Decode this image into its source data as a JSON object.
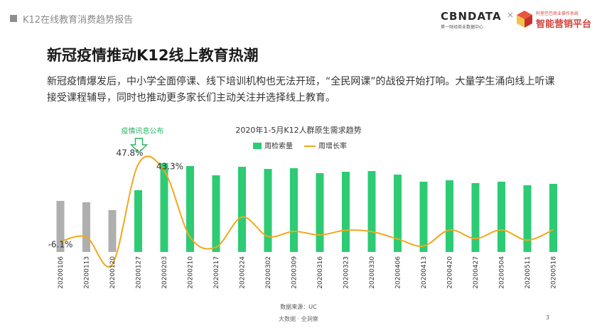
{
  "header": {
    "report_title": "K12在线教育消费趋势报告",
    "cbn_logo": "CBNDATA",
    "cbn_logo_sub": "第一财经商业数据中心",
    "separator": "×",
    "partner_logo": "智能营销平台",
    "partner_logo_sub": "阿里巴巴商业操作系统"
  },
  "headline": "新冠疫情推动K12线上教育热潮",
  "paragraph": "新冠疫情爆发后，中小学全面停课、线下培训机构也无法开班，“全民网课”的战役开始打响。大量学生涌向线上听课接受课程辅导，同时也推动更多家长们主动关注并选择线上教育。",
  "chart_data": {
    "type": "bar",
    "title": "2020年1-5月K12人群原生需求趋势",
    "categories": [
      "20200106",
      "20200113",
      "20200120",
      "20200127",
      "20200203",
      "20200210",
      "20200217",
      "20200224",
      "20200302",
      "20200309",
      "20200316",
      "20200323",
      "20200330",
      "20200406",
      "20200413",
      "20200420",
      "20200427",
      "20200504",
      "20200511",
      "20200518"
    ],
    "series": [
      {
        "name": "周检索量",
        "type": "bar",
        "values": [
          72,
          70,
          59,
          87,
          125,
          121,
          108,
          120,
          117,
          118,
          111,
          113,
          114,
          109,
          99,
          101,
          97,
          99,
          94,
          96
        ],
        "colors": [
          "#b0afaf",
          "#b0afaf",
          "#b0afaf",
          "#2dcb74",
          "#2dcb74",
          "#2dcb74",
          "#2dcb74",
          "#2dcb74",
          "#2dcb74",
          "#2dcb74",
          "#2dcb74",
          "#2dcb74",
          "#2dcb74",
          "#2dcb74",
          "#2dcb74",
          "#2dcb74",
          "#2dcb74",
          "#2dcb74",
          "#2dcb74",
          "#2dcb74"
        ]
      },
      {
        "name": "周增长率",
        "type": "line",
        "color": "#f0a81e",
        "values": [
          -6.1,
          -3.0,
          -22.0,
          47.8,
          43.3,
          -3.0,
          -10.0,
          11.0,
          -2.5,
          1.0,
          -1.5,
          1.8,
          0.8,
          -4.3,
          -9.2,
          2.0,
          -4.0,
          2.0,
          -5.1,
          2.1
        ]
      }
    ],
    "data_labels": [
      {
        "series": "周增长率",
        "index": 0,
        "text": "-6.1%"
      },
      {
        "series": "周增长率",
        "index": 3,
        "text": "47.8%"
      },
      {
        "series": "周增长率",
        "index": 4,
        "text": "43.3%"
      }
    ],
    "annotation": {
      "text": "疫情讯息公布",
      "index": 3,
      "color": "#27b463"
    },
    "legend_position": "top-right",
    "grid": false,
    "source": "数据来源：UC"
  },
  "footer": {
    "text": "大数据 · 全洞察",
    "page": "3"
  }
}
